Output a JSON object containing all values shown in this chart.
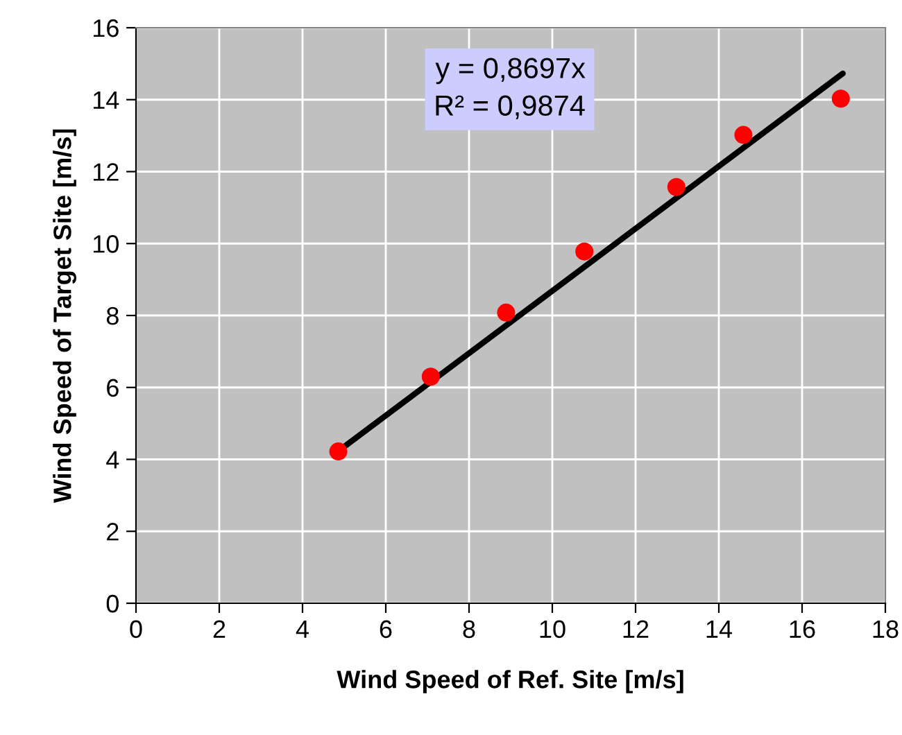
{
  "chart_data": {
    "type": "scatter",
    "xlabel": "Wind Speed of Ref. Site [m/s]",
    "ylabel": "Wind Speed of Target Site [m/s]",
    "xlim": [
      0,
      18
    ],
    "xticks": [
      0,
      2,
      4,
      6,
      8,
      10,
      12,
      14,
      16,
      18
    ],
    "ylim": [
      0,
      16
    ],
    "yticks": [
      0,
      2,
      4,
      6,
      8,
      10,
      12,
      14,
      16
    ],
    "grid": true,
    "series": [
      {
        "marker": "circle",
        "color": "#ff0000",
        "x": [
          4.86,
          7.08,
          8.89,
          10.77,
          12.98,
          14.59,
          16.93
        ],
        "values": [
          4.22,
          6.3,
          8.08,
          9.78,
          11.57,
          13.02,
          14.03
        ]
      },
      {
        "type": "line",
        "marker": "none",
        "color": "#000000",
        "x": [
          4.86,
          16.98
        ],
        "values": [
          4.23,
          14.73
        ]
      }
    ],
    "annotations": [
      "y = 0,8697x\nR² = 0,9874"
    ]
  }
}
